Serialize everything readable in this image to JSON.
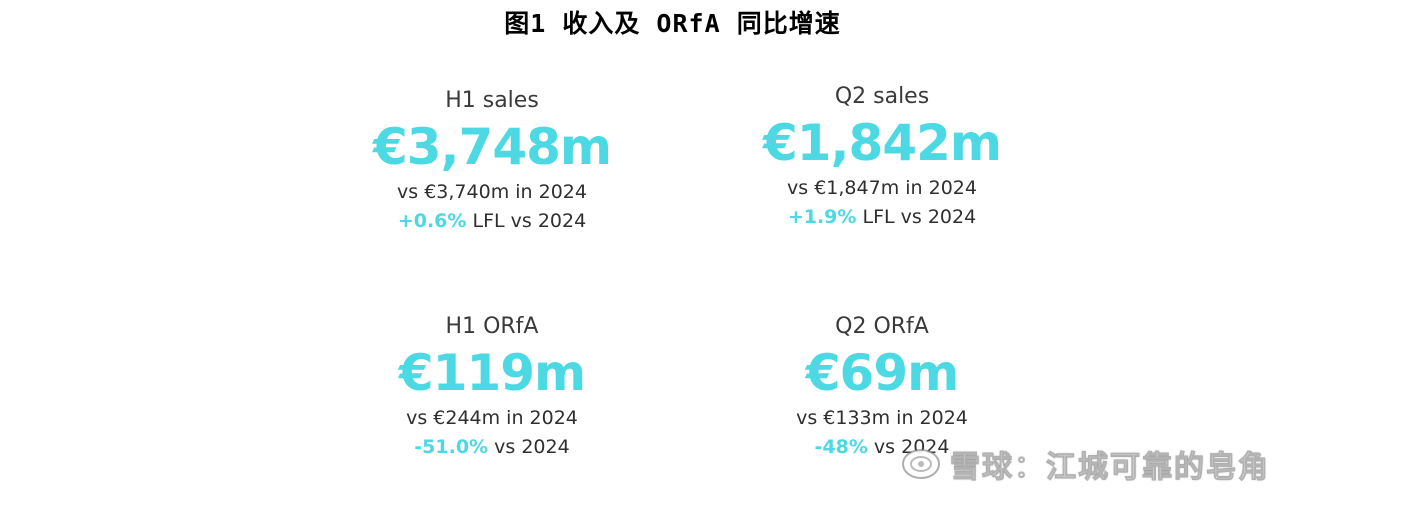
{
  "figure": {
    "title": "图1 收入及 ORfA 同比增速"
  },
  "cards": {
    "h1_sales": {
      "label": "H1 sales",
      "value": "€3,748m",
      "compare": "vs €3,740m in 2024",
      "change_pct": "+0.6%",
      "change_suffix": " LFL vs 2024"
    },
    "q2_sales": {
      "label": "Q2 sales",
      "value": "€1,842m",
      "compare": "vs €1,847m in 2024",
      "change_pct": "+1.9%",
      "change_suffix": " LFL vs 2024"
    },
    "h1_orfa": {
      "label": "H1 ORfA",
      "value": "€119m",
      "compare": "vs €244m in 2024",
      "change_pct": "-51.0%",
      "change_suffix": " vs 2024"
    },
    "q2_orfa": {
      "label": "Q2 ORfA",
      "value": "€69m",
      "compare": "vs €133m in 2024",
      "change_pct": "-48%",
      "change_suffix": " vs 2024"
    }
  },
  "watermark": {
    "logo_icon": "snowball-logo-icon",
    "text": "雪球：江城可靠的皂角"
  },
  "colors": {
    "accent": "#4dd9e3",
    "text": "#2f2f2f",
    "title": "#000000"
  }
}
